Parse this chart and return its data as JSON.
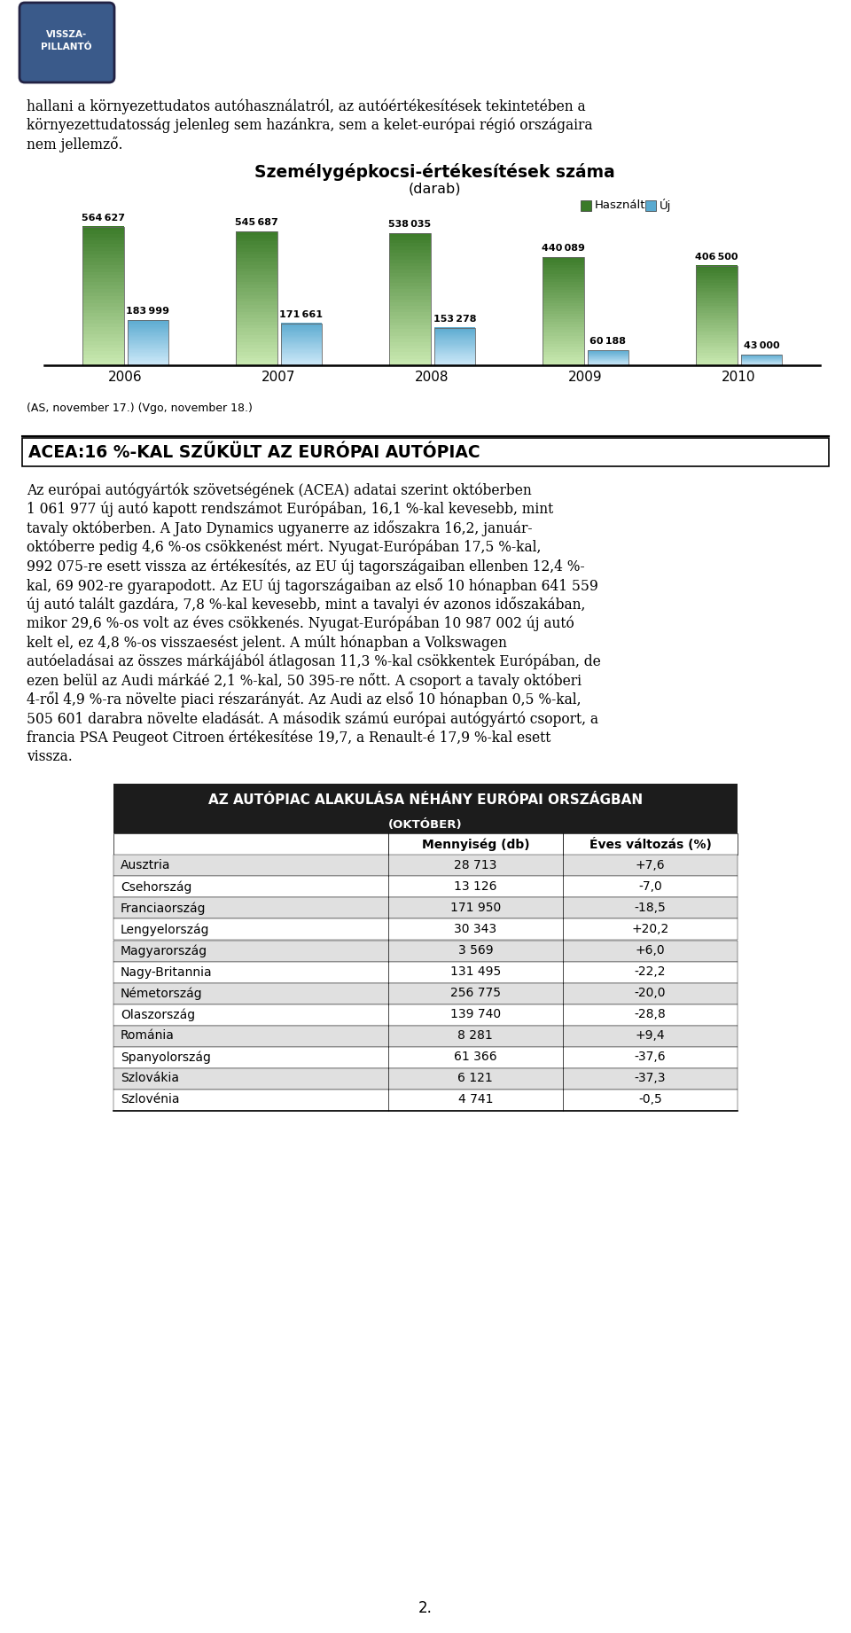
{
  "title_chart": "Személygépkocsi-értékesítések száma",
  "subtitle_chart": "(darab)",
  "years": [
    "2006",
    "2007",
    "2008",
    "2009",
    "2010"
  ],
  "haszalt_values": [
    564627,
    545687,
    538035,
    440089,
    406500
  ],
  "uj_values": [
    183999,
    171661,
    153278,
    60188,
    43000
  ],
  "legend_haszalt": "Használt",
  "legend_uj": "Új",
  "color_haszalt_top": "#3a7a28",
  "color_haszalt_bottom": "#c8e8b0",
  "color_uj_top": "#5aaad0",
  "color_uj_bottom": "#cce8f8",
  "source_note": "(AS, november 17.) (Vgo, november 18.)",
  "heading": "ACEA:16 %-KAL SZŰKÜLT AZ EURÓPAI AUTÓPIAC",
  "intro_lines": [
    "hallani a környezettudatos autóhasználatról, az autóértékesítések tekintetében a",
    "környezettudatosság jelenleg sem hazánkra, sem a kelet-európai régió országaira",
    "nem jellemző."
  ],
  "body_lines": [
    "Az európai autógyártók szövetségének (ACEA) adatai szerint októberben",
    "1 061 977 új autó kapott rendszámot Európában, 16,1 %-kal kevesebb, mint",
    "tavaly októberben. A Jato Dynamics ugyanerre az időszakra 16,2, január-",
    "októberre pedig 4,6 %-os csökkenést mért. Nyugat-Európában 17,5 %-kal,",
    "992 075-re esett vissza az értékesítés, az EU új tagországaiban ellenben 12,4 %-",
    "kal, 69 902-re gyarapodott. Az EU új tagországaiban az első 10 hónapban 641 559",
    "új autó talált gazdára, 7,8 %-kal kevesebb, mint a tavalyi év azonos időszakában,",
    "mikor 29,6 %-os volt az éves csökkenés. Nyugat-Európában 10 987 002 új autó",
    "kelt el, ez 4,8 %-os visszaesést jelent. A múlt hónapban a Volkswagen",
    "autóeladásai az összes márkájából átlagosan 11,3 %-kal csökkentek Európában, de",
    "ezen belül az Audi márkáé 2,1 %-kal, 50 395-re nőtt. A csoport a tavaly októberi",
    "4-ről 4,9 %-ra növelte piaci részarányát. Az Audi az első 10 hónapban 0,5 %-kal,",
    "505 601 darabra növelte eladását. A második számú európai autógyártó csoport, a",
    "francia PSA Peugeot Citroen értékesítése 19,7, a Renault-é 17,9 %-kal esett",
    "vissza."
  ],
  "table_title": "AZ AUTÓPIAC ALAKULÁSA NÉHÁNY EURÓPAI ORSZÁGBAN",
  "table_subtitle": "(OKTÓBER)",
  "table_col1": "Mennyiség (db)",
  "table_col2": "Éves változás (%)",
  "table_rows": [
    [
      "Ausztria",
      "28 713",
      "+7,6"
    ],
    [
      "Csehország",
      "13 126",
      "-7,0"
    ],
    [
      "Franciaország",
      "171 950",
      "-18,5"
    ],
    [
      "Lengyelország",
      "30 343",
      "+20,2"
    ],
    [
      "Magyarország",
      "3 569",
      "+6,0"
    ],
    [
      "Nagy-Britannia",
      "131 495",
      "-22,2"
    ],
    [
      "Németország",
      "256 775",
      "-20,0"
    ],
    [
      "Olaszország",
      "139 740",
      "-28,8"
    ],
    [
      "Románia",
      "8 281",
      "+9,4"
    ],
    [
      "Spanyolország",
      "61 366",
      "-37,6"
    ],
    [
      "Szlovákia",
      "6 121",
      "-37,3"
    ],
    [
      "Szlovénia",
      "4 741",
      "-0,5"
    ]
  ],
  "page_number": "2.",
  "background_color": "#ffffff",
  "text_color": "#000000",
  "bar_max": 600000,
  "logo_text": "VISSZA-\nPILLANTÓ"
}
